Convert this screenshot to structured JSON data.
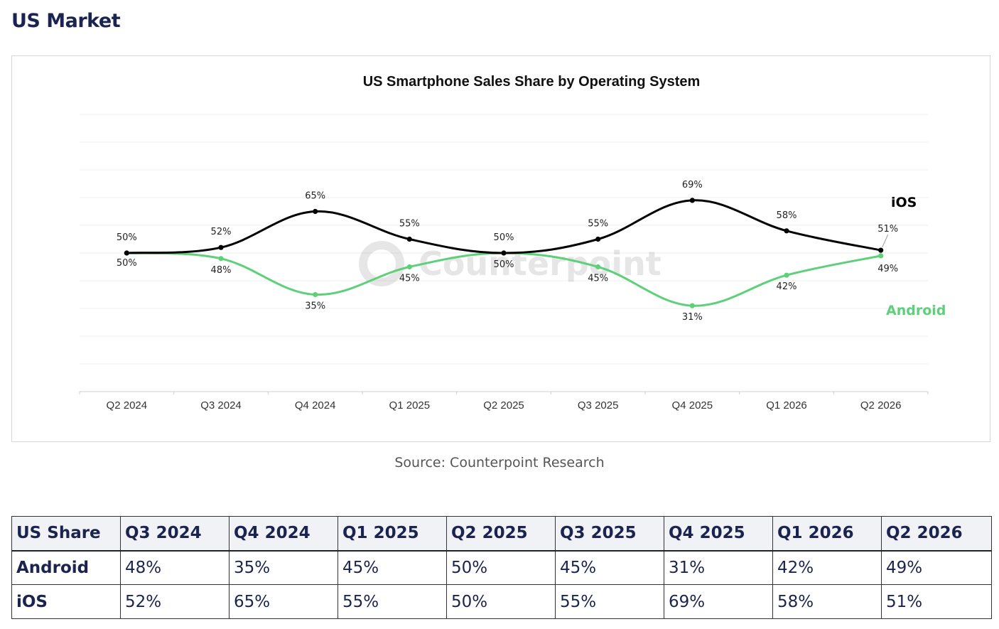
{
  "page": {
    "title": "US Market",
    "source": "Source: Counterpoint Research",
    "watermark": "Counterpoint"
  },
  "chart_data": {
    "type": "line",
    "title": "US Smartphone Sales Share by Operating System",
    "categories": [
      "Q2 2024",
      "Q3 2024",
      "Q4 2024",
      "Q1 2025",
      "Q2 2025",
      "Q3 2025",
      "Q4 2025",
      "Q1 2026",
      "Q2 2026"
    ],
    "ylim": [
      0,
      100
    ],
    "grid": true,
    "series": [
      {
        "name": "iOS",
        "color": "#000000",
        "values": [
          50,
          52,
          65,
          55,
          50,
          55,
          69,
          58,
          51
        ],
        "labels": [
          "50%",
          "52%",
          "65%",
          "55%",
          "50%",
          "55%",
          "69%",
          "58%",
          "51%"
        ]
      },
      {
        "name": "Android",
        "color": "#5fd07a",
        "values": [
          50,
          48,
          35,
          45,
          50,
          45,
          31,
          42,
          49
        ],
        "labels": [
          "50%",
          "48%",
          "35%",
          "45%",
          "50%",
          "45%",
          "31%",
          "42%",
          "49%"
        ]
      }
    ]
  },
  "table": {
    "headers": [
      "US Share",
      "Q3 2024",
      "Q4 2024",
      "Q1 2025",
      "Q2 2025",
      "Q3 2025",
      "Q4 2025",
      "Q1 2026",
      "Q2 2026"
    ],
    "rows": [
      [
        "Android",
        "48%",
        "35%",
        "45%",
        "50%",
        "45%",
        "31%",
        "42%",
        "49%"
      ],
      [
        "iOS",
        "52%",
        "65%",
        "55%",
        "50%",
        "55%",
        "69%",
        "58%",
        "51%"
      ]
    ]
  }
}
